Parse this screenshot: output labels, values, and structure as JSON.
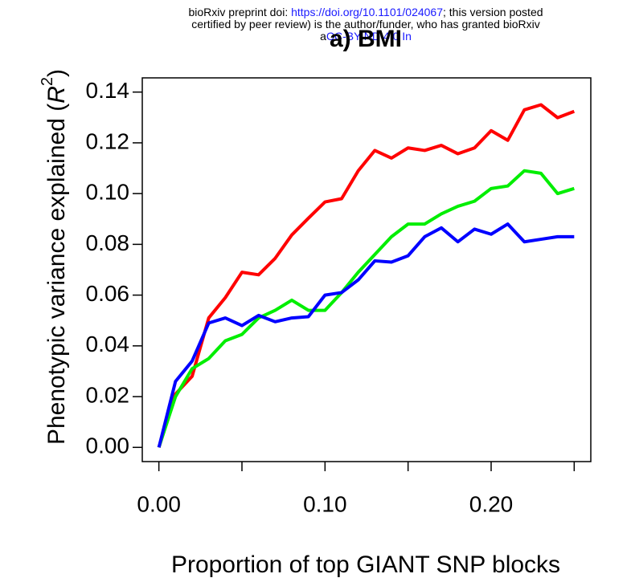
{
  "chart_data": {
    "type": "line",
    "title": "a)  BMI",
    "annotations": [
      [
        {
          "text": "bioRxiv preprint doi: ",
          "color": "#000000"
        },
        {
          "text": "https://doi.org/10.1101/024067",
          "color": "#1a1aff"
        },
        {
          "text": "; this version posted",
          "color": "#000000"
        }
      ],
      [
        {
          "text": "certified by peer review) is the author/funder, who has granted bioRxiv",
          "color": "#000000"
        }
      ],
      [
        {
          "text": "a",
          "color": "#000000"
        },
        {
          "text": "CC-BY-ND 4.0 In",
          "color": "#1a1aff"
        }
      ]
    ],
    "x_label": "Proportion of top GIANT SNP blocks",
    "y_label": {
      "text": "Phenotypic variance explained (",
      "symbol": "R",
      "superscript": "2",
      "close": ")"
    },
    "x": [
      0,
      0.01,
      0.02,
      0.03,
      0.04,
      0.05,
      0.06,
      0.07,
      0.08,
      0.09,
      0.1,
      0.11,
      0.12,
      0.13,
      0.14,
      0.15,
      0.16,
      0.17,
      0.18,
      0.19,
      0.2,
      0.21,
      0.22,
      0.23,
      0.24,
      0.25
    ],
    "series": [
      {
        "color": "#ff0000",
        "values": [
          0,
          0.021,
          0.028,
          0.051,
          0.059,
          0.069,
          0.068,
          0.0745,
          0.0837,
          0.0903,
          0.0967,
          0.098,
          0.109,
          0.117,
          0.114,
          0.118,
          0.117,
          0.119,
          0.1157,
          0.118,
          0.1248,
          0.121,
          0.133,
          0.135,
          0.1299,
          0.1324
        ]
      },
      {
        "color": "#00ee00",
        "values": [
          0,
          0.02,
          0.031,
          0.035,
          0.042,
          0.0445,
          0.051,
          0.054,
          0.058,
          0.054,
          0.054,
          0.061,
          0.069,
          0.076,
          0.083,
          0.088,
          0.088,
          0.092,
          0.095,
          0.097,
          0.102,
          0.103,
          0.109,
          0.108,
          0.1,
          0.102
        ]
      },
      {
        "color": "#0000ff",
        "values": [
          0,
          0.026,
          0.034,
          0.049,
          0.051,
          0.048,
          0.052,
          0.0495,
          0.051,
          0.0515,
          0.06,
          0.061,
          0.066,
          0.0735,
          0.073,
          0.0755,
          0.083,
          0.0865,
          0.081,
          0.086,
          0.084,
          0.088,
          0.081,
          0.082,
          0.083,
          0.083
        ]
      }
    ],
    "xlim": [
      -0.01,
      0.26
    ],
    "ylim": [
      -0.0056,
      0.1456
    ],
    "xticks": [
      {
        "value": 0,
        "label": "0.00"
      },
      {
        "value": 0.05,
        "label": null
      },
      {
        "value": 0.1,
        "label": "0.10"
      },
      {
        "value": 0.15,
        "label": null
      },
      {
        "value": 0.2,
        "label": "0.20"
      },
      {
        "value": 0.25,
        "label": null
      }
    ],
    "yticks": [
      {
        "value": 0,
        "label": "0.00"
      },
      {
        "value": 0.02,
        "label": "0.02"
      },
      {
        "value": 0.04,
        "label": "0.04"
      },
      {
        "value": 0.06,
        "label": "0.06"
      },
      {
        "value": 0.08,
        "label": "0.08"
      },
      {
        "value": 0.1,
        "label": "0.10"
      },
      {
        "value": 0.12,
        "label": "0.12"
      },
      {
        "value": 0.14,
        "label": "0.14"
      }
    ],
    "grid": false
  }
}
